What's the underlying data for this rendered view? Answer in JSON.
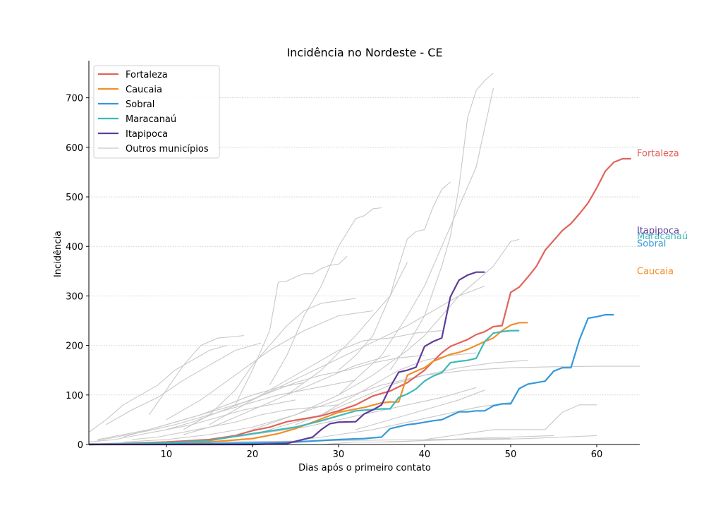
{
  "chart_data": {
    "type": "line",
    "title": "Incidência no Nordeste - CE",
    "xlabel": "Dias após o primeiro contato",
    "ylabel": "Incidência",
    "xlim": [
      1,
      65
    ],
    "ylim": [
      0,
      775
    ],
    "xticks": [
      10,
      20,
      30,
      40,
      50,
      60
    ],
    "yticks": [
      0,
      100,
      200,
      300,
      400,
      500,
      600,
      700
    ],
    "grid": "horizontal dotted",
    "legend_position": "top-left",
    "colors": {
      "Fortaleza": "#e1635a",
      "Caucaia": "#f28e2b",
      "Sobral": "#3498db",
      "Maracanaú": "#3fb8b8",
      "Itapipoca": "#5e3c99",
      "Outros municípios": "#c8c8c8"
    },
    "series": [
      {
        "name": "Fortaleza",
        "end_label": "Fortaleza",
        "label_y": 588,
        "x": [
          1,
          5,
          10,
          15,
          18,
          20,
          22,
          24,
          26,
          28,
          30,
          32,
          34,
          36,
          38,
          40,
          41,
          42,
          43,
          44,
          45,
          46,
          47,
          48,
          49,
          50,
          51,
          52,
          53,
          54,
          55,
          56,
          57,
          58,
          59,
          60,
          61,
          62,
          63,
          64
        ],
        "y": [
          0,
          2,
          5,
          10,
          18,
          28,
          35,
          46,
          52,
          58,
          68,
          80,
          98,
          108,
          125,
          150,
          168,
          185,
          198,
          205,
          212,
          222,
          228,
          238,
          240,
          307,
          318,
          338,
          360,
          392,
          412,
          432,
          446,
          466,
          488,
          518,
          552,
          570,
          577,
          577
        ]
      },
      {
        "name": "Caucaia",
        "end_label": "Caucaia",
        "label_y": 350,
        "x": [
          1,
          10,
          15,
          20,
          23,
          25,
          27,
          30,
          33,
          35,
          36,
          37,
          38,
          39,
          40,
          41,
          42,
          43,
          44,
          45,
          46,
          47,
          48,
          49,
          50,
          51,
          52
        ],
        "y": [
          0,
          2,
          5,
          12,
          22,
          32,
          45,
          65,
          75,
          84,
          86,
          86,
          140,
          148,
          155,
          168,
          175,
          182,
          186,
          192,
          200,
          208,
          215,
          230,
          241,
          246,
          246
        ]
      },
      {
        "name": "Sobral",
        "end_label": "Sobral",
        "label_y": 405,
        "x": [
          1,
          10,
          20,
          25,
          30,
          33,
          35,
          36,
          37,
          38,
          39,
          40,
          41,
          42,
          43,
          44,
          45,
          46,
          47,
          48,
          49,
          50,
          51,
          52,
          53,
          54,
          55,
          56,
          57,
          58,
          59,
          60,
          61,
          62
        ],
        "y": [
          0,
          1,
          3,
          5,
          10,
          12,
          15,
          32,
          36,
          40,
          42,
          45,
          48,
          50,
          58,
          66,
          66,
          68,
          68,
          78,
          82,
          82,
          113,
          122,
          125,
          128,
          148,
          155,
          155,
          212,
          255,
          258,
          262,
          262
        ]
      },
      {
        "name": "Maracanaú",
        "end_label": "Maracanaú",
        "label_y": 420,
        "x": [
          1,
          10,
          15,
          20,
          25,
          28,
          30,
          32,
          35,
          36,
          37,
          38,
          39,
          40,
          41,
          42,
          43,
          44,
          45,
          46,
          47,
          48,
          49,
          50,
          51
        ],
        "y": [
          0,
          3,
          8,
          22,
          35,
          48,
          58,
          68,
          72,
          72,
          95,
          102,
          112,
          128,
          138,
          145,
          165,
          168,
          170,
          174,
          208,
          225,
          228,
          230,
          230
        ]
      },
      {
        "name": "Itapipoca",
        "end_label": "Itapipoca",
        "label_y": 432,
        "x": [
          1,
          15,
          20,
          24,
          27,
          28,
          29,
          30,
          32,
          33,
          34,
          35,
          36,
          37,
          38,
          39,
          40,
          41,
          42,
          43,
          44,
          45,
          46,
          47
        ],
        "y": [
          0,
          0,
          0,
          2,
          15,
          30,
          42,
          45,
          46,
          62,
          70,
          80,
          116,
          146,
          150,
          156,
          198,
          208,
          215,
          298,
          332,
          342,
          348,
          348
        ]
      }
    ],
    "others_label": "Outros municípios",
    "others": [
      {
        "x": [
          5,
          10,
          15,
          20,
          25,
          30,
          35,
          40,
          45,
          50,
          55,
          60,
          65
        ],
        "y": [
          5,
          10,
          20,
          35,
          60,
          90,
          120,
          140,
          150,
          155,
          157,
          158,
          158
        ]
      },
      {
        "x": [
          2,
          8,
          14,
          20,
          26,
          32,
          38,
          44,
          47
        ],
        "y": [
          10,
          30,
          60,
          90,
          140,
          190,
          240,
          300,
          320
        ]
      },
      {
        "x": [
          20,
          25,
          30,
          35,
          38,
          40,
          42,
          44,
          46,
          47,
          48
        ],
        "y": [
          30,
          60,
          100,
          180,
          260,
          320,
          400,
          480,
          560,
          640,
          720
        ]
      },
      {
        "x": [
          36,
          38,
          40,
          42,
          43,
          44,
          45,
          46,
          47,
          48
        ],
        "y": [
          150,
          200,
          260,
          360,
          420,
          520,
          660,
          715,
          735,
          750
        ]
      },
      {
        "x": [
          22,
          24,
          26,
          28,
          30,
          32,
          33,
          34,
          35
        ],
        "y": [
          120,
          180,
          260,
          320,
          400,
          456,
          462,
          476,
          478
        ]
      },
      {
        "x": [
          30,
          32,
          34,
          36,
          37,
          38,
          39,
          40,
          41,
          42,
          43
        ],
        "y": [
          150,
          180,
          220,
          300,
          360,
          415,
          430,
          434,
          480,
          515,
          530
        ]
      },
      {
        "x": [
          18,
          20,
          22,
          23,
          24,
          25,
          26,
          27,
          28,
          29,
          30,
          31
        ],
        "y": [
          80,
          150,
          230,
          328,
          330,
          338,
          345,
          345,
          355,
          362,
          364,
          380
        ]
      },
      {
        "x": [
          12,
          15,
          18,
          20,
          22,
          24,
          26,
          28,
          30,
          32
        ],
        "y": [
          30,
          60,
          110,
          160,
          200,
          240,
          270,
          285,
          290,
          295
        ]
      },
      {
        "x": [
          30,
          34,
          38,
          40,
          42,
          44,
          46,
          48,
          50,
          51
        ],
        "y": [
          100,
          140,
          190,
          220,
          260,
          300,
          330,
          360,
          410,
          414
        ]
      },
      {
        "x": [
          8,
          10,
          12,
          14,
          16,
          18,
          19
        ],
        "y": [
          60,
          110,
          160,
          200,
          215,
          218,
          220
        ]
      },
      {
        "x": [
          1,
          3,
          5,
          7,
          9,
          11,
          13,
          15,
          17
        ],
        "y": [
          25,
          50,
          80,
          100,
          120,
          150,
          170,
          190,
          200
        ]
      },
      {
        "x": [
          20,
          24,
          28,
          32,
          36,
          40,
          44,
          48,
          52
        ],
        "y": [
          20,
          40,
          60,
          90,
          120,
          140,
          155,
          165,
          170
        ]
      },
      {
        "x": [
          40,
          44,
          48,
          50,
          52,
          54,
          56,
          58,
          60
        ],
        "y": [
          10,
          20,
          30,
          30,
          30,
          30,
          65,
          80,
          80
        ]
      },
      {
        "x": [
          28,
          32,
          36,
          40,
          44,
          48,
          52,
          56,
          60
        ],
        "y": [
          0,
          5,
          5,
          8,
          10,
          10,
          12,
          15,
          18
        ]
      },
      {
        "x": [
          10,
          14,
          18,
          22,
          26,
          30,
          34
        ],
        "y": [
          50,
          90,
          140,
          190,
          230,
          260,
          270
        ]
      },
      {
        "x": [
          24,
          28,
          32,
          36,
          38
        ],
        "y": [
          100,
          150,
          220,
          300,
          368
        ]
      },
      {
        "x": [
          3,
          6,
          9,
          12,
          15,
          18,
          21
        ],
        "y": [
          40,
          70,
          95,
          130,
          160,
          190,
          205
        ]
      },
      {
        "x": [
          15,
          18,
          21,
          24,
          27,
          30,
          33,
          36,
          39,
          42
        ],
        "y": [
          40,
          70,
          100,
          130,
          160,
          190,
          210,
          215,
          225,
          230
        ]
      },
      {
        "x": [
          5,
          8,
          11,
          14,
          17,
          20,
          23,
          26
        ],
        "y": [
          15,
          30,
          45,
          60,
          80,
          100,
          115,
          125
        ]
      },
      {
        "x": [
          25,
          28,
          31,
          34,
          37,
          40,
          43,
          46
        ],
        "y": [
          40,
          60,
          90,
          120,
          150,
          170,
          180,
          185
        ]
      },
      {
        "x": [
          10,
          13,
          16,
          19,
          22,
          25,
          28,
          31,
          34,
          37,
          40
        ],
        "y": [
          30,
          45,
          65,
          85,
          105,
          125,
          140,
          150,
          165,
          175,
          180
        ]
      },
      {
        "x": [
          2,
          5,
          8,
          11,
          14,
          17,
          20,
          23,
          26,
          29,
          32
        ],
        "y": [
          8,
          18,
          28,
          40,
          55,
          70,
          85,
          100,
          110,
          120,
          130
        ]
      },
      {
        "x": [
          32,
          35,
          38,
          41,
          44,
          47
        ],
        "y": [
          30,
          45,
          60,
          75,
          90,
          110
        ]
      },
      {
        "x": [
          18,
          22,
          26,
          30,
          34,
          38,
          42,
          46
        ],
        "y": [
          15,
          25,
          35,
          50,
          65,
          80,
          95,
          115
        ]
      },
      {
        "x": [
          1,
          4,
          7,
          10,
          13,
          16,
          19,
          22,
          25
        ],
        "y": [
          5,
          10,
          20,
          30,
          40,
          55,
          70,
          80,
          90
        ]
      },
      {
        "x": [
          6,
          9,
          12,
          15,
          18,
          21,
          24,
          27,
          30
        ],
        "y": [
          10,
          15,
          25,
          35,
          45,
          60,
          70,
          75,
          80
        ]
      },
      {
        "x": [
          12,
          16,
          20,
          24,
          28,
          32,
          36
        ],
        "y": [
          20,
          40,
          70,
          100,
          130,
          160,
          180
        ]
      },
      {
        "x": [
          26,
          30,
          34,
          38,
          42,
          46,
          50
        ],
        "y": [
          10,
          20,
          30,
          45,
          60,
          75,
          85
        ]
      },
      {
        "x": [
          35,
          40,
          45,
          50,
          55
        ],
        "y": [
          5,
          8,
          12,
          15,
          18
        ]
      },
      {
        "x": [
          1,
          10,
          20,
          30,
          40,
          50
        ],
        "y": [
          2,
          4,
          6,
          8,
          10,
          12
        ]
      }
    ]
  }
}
